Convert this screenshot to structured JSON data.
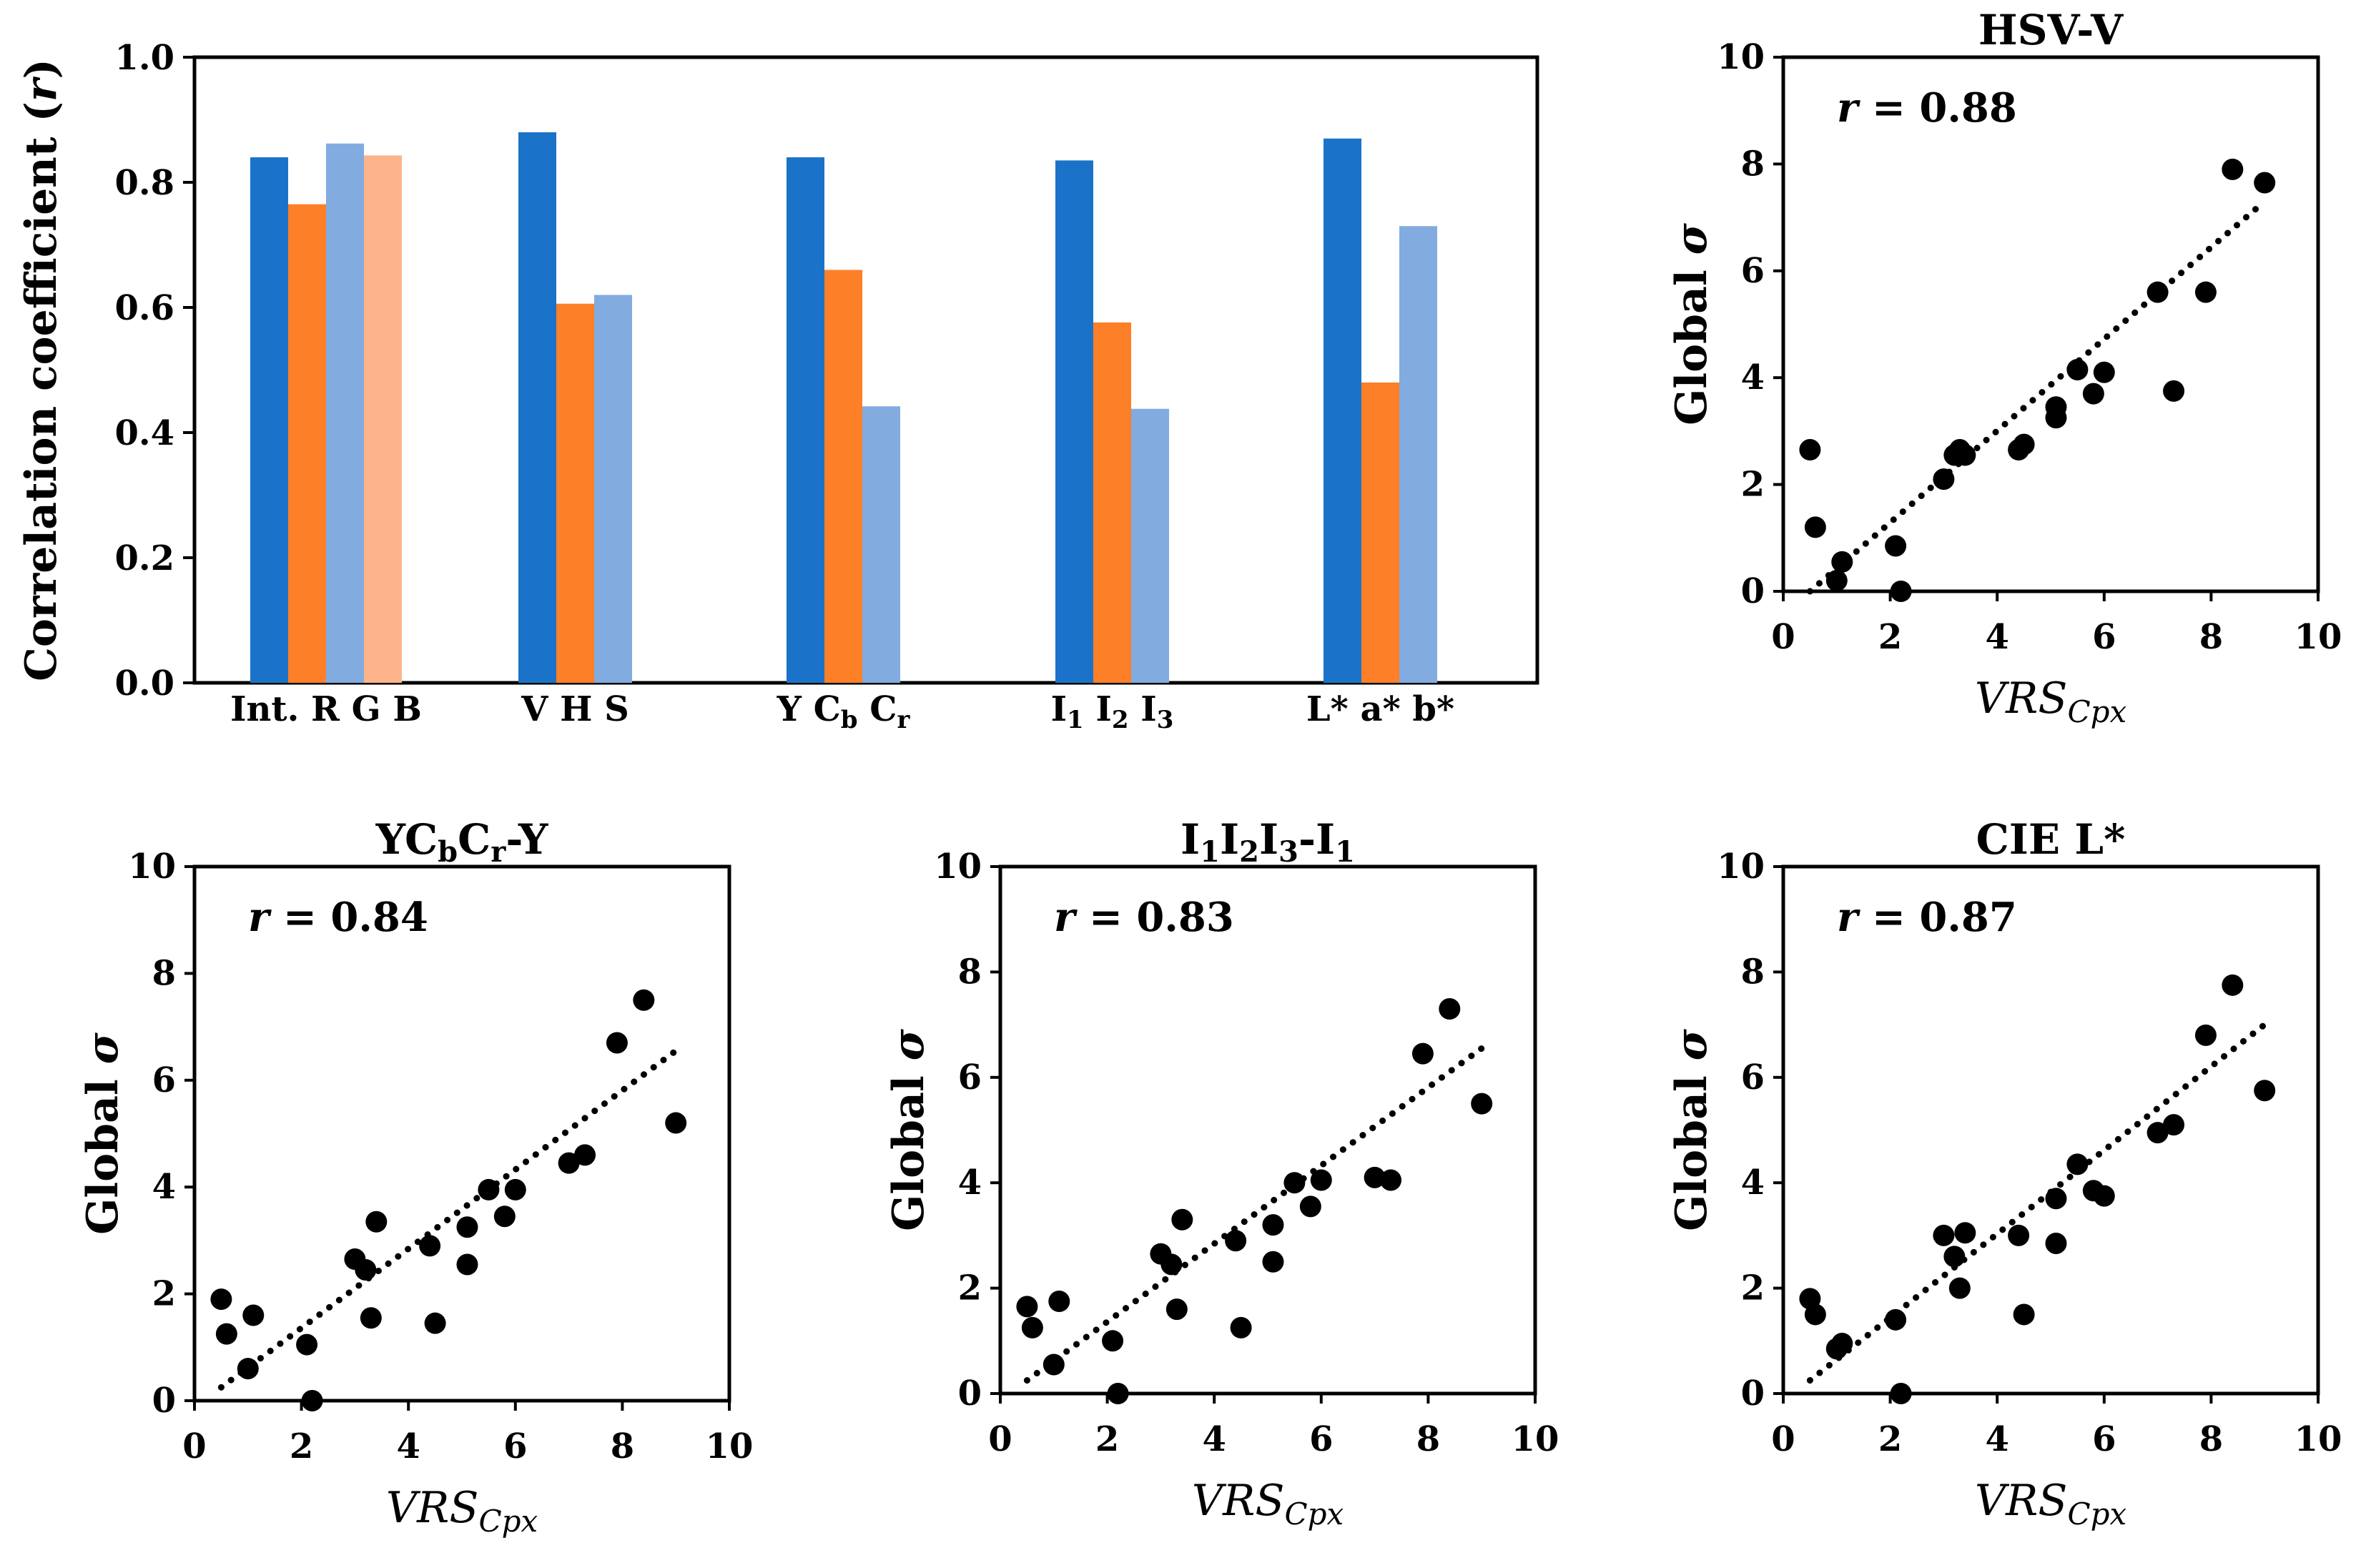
{
  "chart_data": [
    {
      "type": "bar",
      "ylabel": "Correlation coefficient (",
      "ylabel_italic": "r",
      "ylabel_tail": ")",
      "ylim": [
        0,
        1.0
      ],
      "yticks": [
        "0.0",
        "0.2",
        "0.4",
        "0.6",
        "0.8",
        "1.0"
      ],
      "groups": [
        {
          "values": [
            0.84,
            0.765,
            0.862,
            0.843
          ],
          "labels": [
            {
              "t": "Int."
            },
            {
              "t": "R"
            },
            {
              "t": "G"
            },
            {
              "t": "B"
            }
          ]
        },
        {
          "values": [
            0.88,
            0.606,
            0.62
          ],
          "labels": [
            {
              "t": "V"
            },
            {
              "t": "H"
            },
            {
              "t": "S"
            }
          ]
        },
        {
          "values": [
            0.84,
            0.66,
            0.442
          ],
          "labels": [
            {
              "t": "Y"
            },
            {
              "t": "C",
              "sub": "b"
            },
            {
              "t": "C",
              "sub": "r"
            }
          ]
        },
        {
          "values": [
            0.835,
            0.576,
            0.438
          ],
          "labels": [
            {
              "t": "I",
              "sub": "1"
            },
            {
              "t": "I",
              "sub": "2"
            },
            {
              "t": "I",
              "sub": "3"
            }
          ]
        },
        {
          "values": [
            0.87,
            0.48,
            0.73
          ],
          "labels": [
            {
              "t": "L*"
            },
            {
              "t": "a*"
            },
            {
              "t": "b*"
            }
          ]
        }
      ],
      "bar_colors": [
        "#1a73c8",
        "#fd7f28",
        "#82abe0",
        "#fdb48a"
      ]
    },
    {
      "type": "scatter",
      "title": [
        {
          "t": "HSV-V"
        }
      ],
      "r_label": "r",
      "r_value": "= 0.88",
      "xlabel": "VRS",
      "xlabel_sub": "Cpx",
      "ylabel": "Global ",
      "ylabel_italic": "σ",
      "xlim": [
        0,
        10
      ],
      "ylim": [
        0,
        10
      ],
      "ticks": [
        "0",
        "2",
        "4",
        "6",
        "8",
        "10"
      ],
      "trend": [
        [
          0.5,
          0.0
        ],
        [
          9.0,
          7.3
        ]
      ],
      "points": [
        [
          0.5,
          2.65
        ],
        [
          0.6,
          1.2
        ],
        [
          1.0,
          0.2
        ],
        [
          1.1,
          0.55
        ],
        [
          2.1,
          0.85
        ],
        [
          2.2,
          0.0
        ],
        [
          3.0,
          2.1
        ],
        [
          3.2,
          2.55
        ],
        [
          3.3,
          2.65
        ],
        [
          3.4,
          2.55
        ],
        [
          4.4,
          2.65
        ],
        [
          4.5,
          2.75
        ],
        [
          5.1,
          3.45
        ],
        [
          5.1,
          3.25
        ],
        [
          5.5,
          4.15
        ],
        [
          5.8,
          3.7
        ],
        [
          6.0,
          4.1
        ],
        [
          7.0,
          5.6
        ],
        [
          7.3,
          3.75
        ],
        [
          7.9,
          5.6
        ],
        [
          8.4,
          7.9
        ],
        [
          9.0,
          7.65
        ]
      ]
    },
    {
      "type": "scatter",
      "title": [
        {
          "t": "YC"
        },
        {
          "sub": "b"
        },
        {
          "t": "C"
        },
        {
          "sub": "r"
        },
        {
          "t": "-Y"
        }
      ],
      "r_label": "r",
      "r_value": "= 0.84",
      "xlabel": "VRS",
      "xlabel_sub": "Cpx",
      "ylabel": "Global ",
      "ylabel_italic": "σ",
      "xlim": [
        0,
        10
      ],
      "ylim": [
        0,
        10
      ],
      "ticks": [
        "0",
        "2",
        "4",
        "6",
        "8",
        "10"
      ],
      "trend": [
        [
          0.5,
          0.25
        ],
        [
          9.0,
          6.55
        ]
      ],
      "points": [
        [
          0.5,
          1.9
        ],
        [
          0.6,
          1.25
        ],
        [
          1.0,
          0.6
        ],
        [
          1.1,
          1.6
        ],
        [
          2.1,
          1.05
        ],
        [
          2.2,
          0.0
        ],
        [
          3.0,
          2.65
        ],
        [
          3.2,
          2.45
        ],
        [
          3.3,
          1.55
        ],
        [
          3.4,
          3.35
        ],
        [
          4.4,
          2.9
        ],
        [
          4.5,
          1.45
        ],
        [
          5.1,
          3.25
        ],
        [
          5.1,
          2.55
        ],
        [
          5.5,
          3.95
        ],
        [
          5.8,
          3.45
        ],
        [
          6.0,
          3.95
        ],
        [
          7.0,
          4.45
        ],
        [
          7.3,
          4.6
        ],
        [
          7.9,
          6.7
        ],
        [
          8.4,
          7.5
        ],
        [
          9.0,
          5.2
        ]
      ]
    },
    {
      "type": "scatter",
      "title": [
        {
          "t": "I"
        },
        {
          "sub": "1"
        },
        {
          "t": "I"
        },
        {
          "sub": "2"
        },
        {
          "t": "I"
        },
        {
          "sub": "3"
        },
        {
          "t": "-I"
        },
        {
          "sub": "1"
        }
      ],
      "r_label": "r",
      "r_value": "= 0.83",
      "xlabel": "VRS",
      "xlabel_sub": "Cpx",
      "ylabel": "Global ",
      "ylabel_italic": "σ",
      "xlim": [
        0,
        10
      ],
      "ylim": [
        0,
        10
      ],
      "ticks": [
        "0",
        "2",
        "4",
        "6",
        "8",
        "10"
      ],
      "trend": [
        [
          0.5,
          0.25
        ],
        [
          9.0,
          6.55
        ]
      ],
      "points": [
        [
          0.5,
          1.65
        ],
        [
          0.6,
          1.25
        ],
        [
          1.0,
          0.55
        ],
        [
          1.1,
          1.75
        ],
        [
          2.1,
          1.0
        ],
        [
          2.2,
          0.0
        ],
        [
          3.0,
          2.65
        ],
        [
          3.2,
          2.45
        ],
        [
          3.3,
          1.6
        ],
        [
          3.4,
          3.3
        ],
        [
          4.4,
          2.9
        ],
        [
          4.5,
          1.25
        ],
        [
          5.1,
          3.2
        ],
        [
          5.1,
          2.5
        ],
        [
          5.5,
          4.0
        ],
        [
          5.8,
          3.55
        ],
        [
          6.0,
          4.05
        ],
        [
          7.0,
          4.1
        ],
        [
          7.3,
          4.05
        ],
        [
          7.9,
          6.45
        ],
        [
          8.4,
          7.3
        ],
        [
          9.0,
          5.5
        ]
      ]
    },
    {
      "type": "scatter",
      "title": [
        {
          "t": "CIE L*"
        }
      ],
      "r_label": "r",
      "r_value": "= 0.87",
      "xlabel": "VRS",
      "xlabel_sub": "Cpx",
      "ylabel": "Global ",
      "ylabel_italic": "σ",
      "xlim": [
        0,
        10
      ],
      "ylim": [
        0,
        10
      ],
      "ticks": [
        "0",
        "2",
        "4",
        "6",
        "8",
        "10"
      ],
      "trend": [
        [
          0.5,
          0.25
        ],
        [
          9.0,
          7.0
        ]
      ],
      "points": [
        [
          0.5,
          1.8
        ],
        [
          0.6,
          1.5
        ],
        [
          1.0,
          0.85
        ],
        [
          1.1,
          0.95
        ],
        [
          2.1,
          1.4
        ],
        [
          2.2,
          0.0
        ],
        [
          3.0,
          3.0
        ],
        [
          3.2,
          2.6
        ],
        [
          3.3,
          2.0
        ],
        [
          3.4,
          3.05
        ],
        [
          4.4,
          3.0
        ],
        [
          4.5,
          1.5
        ],
        [
          5.1,
          3.7
        ],
        [
          5.1,
          2.85
        ],
        [
          5.5,
          4.35
        ],
        [
          5.8,
          3.85
        ],
        [
          6.0,
          3.75
        ],
        [
          7.0,
          4.95
        ],
        [
          7.3,
          5.1
        ],
        [
          7.9,
          6.8
        ],
        [
          8.4,
          7.75
        ],
        [
          9.0,
          5.75
        ]
      ]
    }
  ]
}
